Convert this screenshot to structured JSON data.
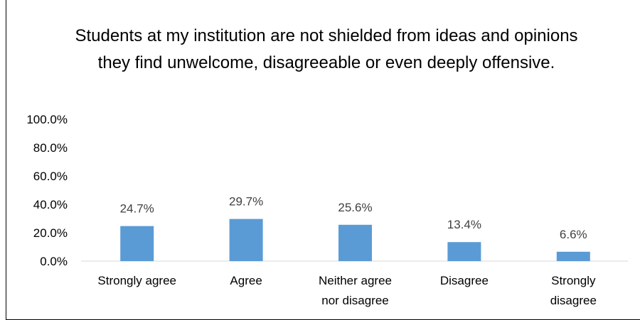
{
  "chart_data": {
    "type": "bar",
    "title": "Students at my institution are not shielded from ideas and opinions they find unwelcome, disagreeable or even deeply offensive.",
    "categories": [
      "Strongly agree",
      "Agree",
      "Neither agree nor disagree",
      "Disagree",
      "Strongly disagree"
    ],
    "category_lines": [
      [
        "Strongly agree"
      ],
      [
        "Agree"
      ],
      [
        "Neither agree",
        "nor disagree"
      ],
      [
        "Disagree"
      ],
      [
        "Strongly",
        "disagree"
      ]
    ],
    "values": [
      24.7,
      29.7,
      25.6,
      13.4,
      6.6
    ],
    "data_labels": [
      "24.7%",
      "29.7%",
      "25.6%",
      "13.4%",
      "6.6%"
    ],
    "y_ticks": [
      0,
      20,
      40,
      60,
      80,
      100
    ],
    "y_tick_labels": [
      "0.0%",
      "20.0%",
      "40.0%",
      "60.0%",
      "80.0%",
      "100.0%"
    ],
    "ylim": [
      0,
      100
    ],
    "xlabel": "",
    "ylabel": "",
    "grid": false,
    "legend": "none",
    "bar_color": "#5B9BD5"
  }
}
